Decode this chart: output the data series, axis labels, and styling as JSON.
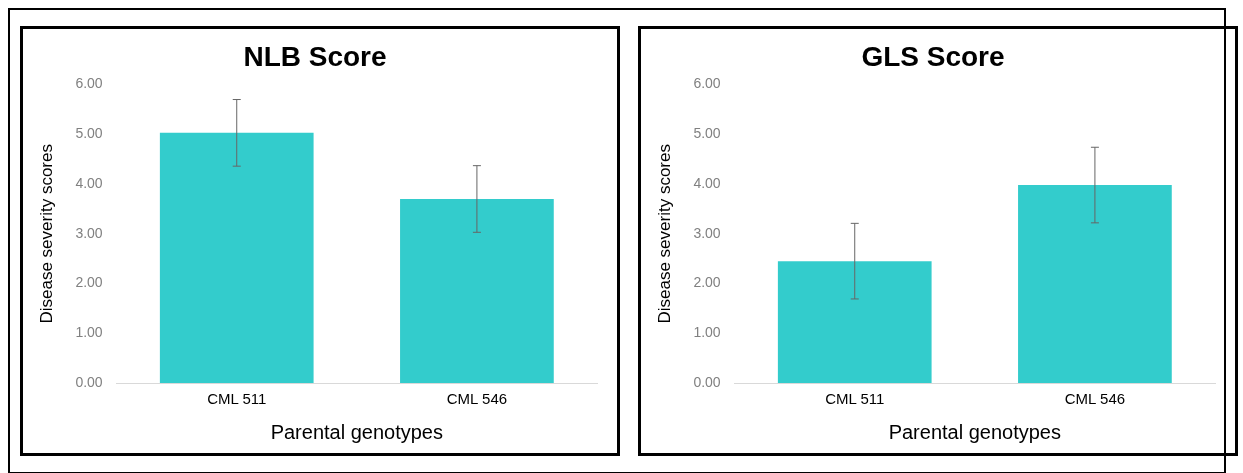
{
  "chart_data": [
    {
      "type": "bar",
      "title": "NLB Score",
      "xlabel": "Parental genotypes",
      "ylabel": "Disease severity scores",
      "categories": [
        "CML 511",
        "CML 546"
      ],
      "values": [
        5.03,
        3.7
      ],
      "errors": [
        0.67,
        0.67
      ],
      "color": "#33cccc",
      "ylim": [
        0,
        6
      ],
      "yticks": [
        {
          "value": 0,
          "label": "0.00"
        },
        {
          "value": 1,
          "label": "1.00"
        },
        {
          "value": 2,
          "label": "2.00"
        },
        {
          "value": 3,
          "label": "3.00"
        },
        {
          "value": 4,
          "label": "4.00"
        },
        {
          "value": 5,
          "label": "5.00"
        },
        {
          "value": 6,
          "label": "6.00"
        }
      ],
      "grid": false,
      "legend": false
    },
    {
      "type": "bar",
      "title": "GLS Score",
      "xlabel": "Parental genotypes",
      "ylabel": "Disease severity scores",
      "categories": [
        "CML 511",
        "CML 546"
      ],
      "values": [
        2.45,
        3.98
      ],
      "errors": [
        0.76,
        0.76
      ],
      "color": "#33cccc",
      "ylim": [
        0,
        6
      ],
      "yticks": [
        {
          "value": 0,
          "label": "0.00"
        },
        {
          "value": 1,
          "label": "1.00"
        },
        {
          "value": 2,
          "label": "2.00"
        },
        {
          "value": 3,
          "label": "3.00"
        },
        {
          "value": 4,
          "label": "4.00"
        },
        {
          "value": 5,
          "label": "5.00"
        },
        {
          "value": 6,
          "label": "6.00"
        }
      ],
      "grid": false,
      "legend": false
    }
  ]
}
